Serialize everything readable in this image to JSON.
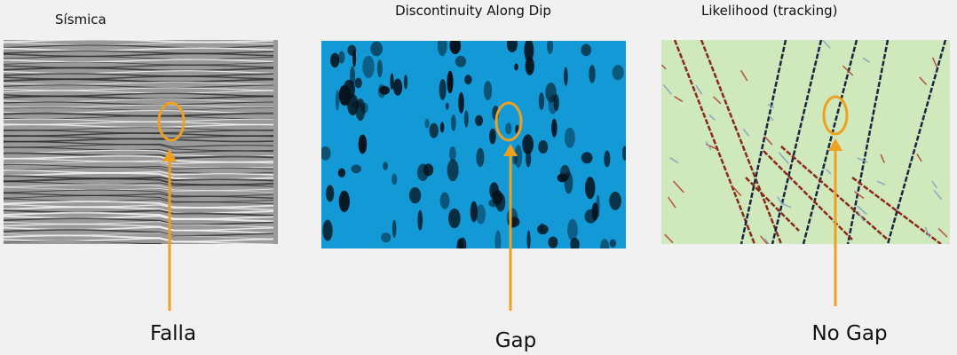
{
  "panels": [
    {
      "title": "Sísmica",
      "caption": "Falla"
    },
    {
      "title": "Discontinuity Along Dip",
      "caption": "Gap"
    },
    {
      "title": "Likelihood (tracking)",
      "caption": "No Gap"
    }
  ]
}
